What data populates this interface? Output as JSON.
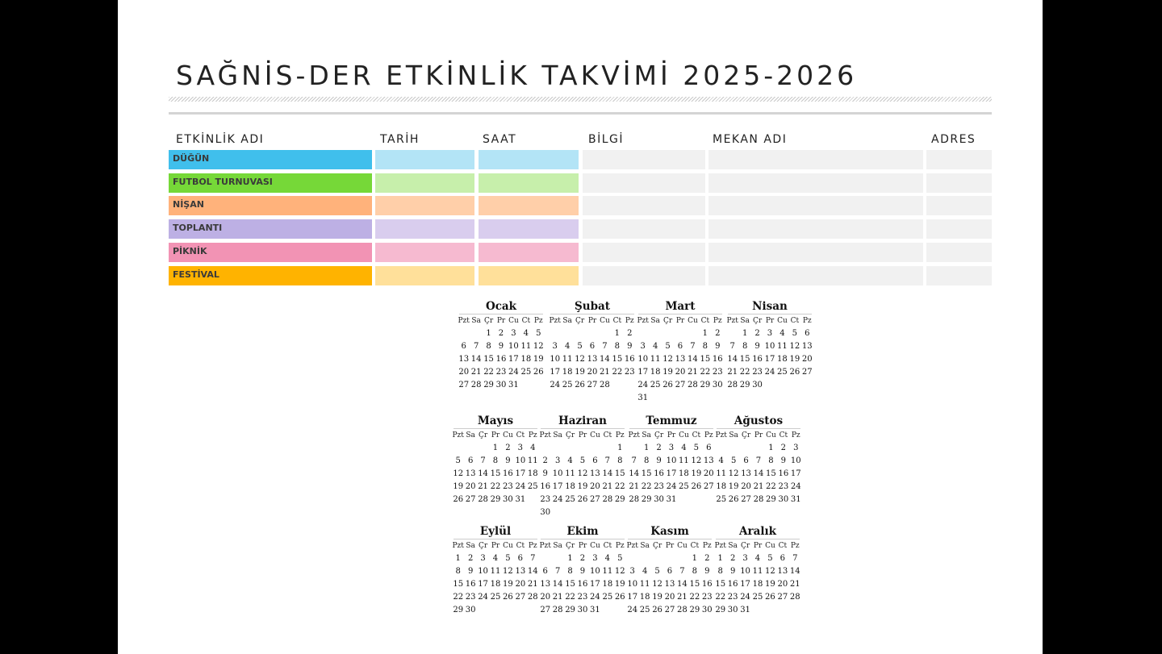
{
  "title": "SAĞNİS-DER ETKİNLİK TAKVİMİ 2025-2026",
  "headers": {
    "name": "ETKİNLİK ADI",
    "date": "TARİH",
    "time": "SAAT",
    "info": "BİLGİ",
    "venue": "MEKAN ADI",
    "address": "ADRES"
  },
  "events": [
    {
      "name": "DÜĞÜN",
      "color": "#40bfec",
      "light": "#b3e4f6"
    },
    {
      "name": "FUTBOL TURNUVASI",
      "color": "#76d838",
      "light": "#c7efab"
    },
    {
      "name": "NİŞAN",
      "color": "#ffb27b",
      "light": "#ffcfa9"
    },
    {
      "name": "TOPLANTI",
      "color": "#bdb0e4",
      "light": "#d9cdee"
    },
    {
      "name": "PİKNİK",
      "color": "#f293b4",
      "light": "#f6bad0"
    },
    {
      "name": "FESTİVAL",
      "color": "#ffb300",
      "light": "#ffe09a"
    }
  ],
  "empty_cell_color": "#f1f1f1",
  "weekdays": [
    "Pzt",
    "Sa",
    "Çr",
    "Pr",
    "Cu",
    "Ct",
    "Pz"
  ],
  "months": [
    {
      "name": "Ocak",
      "offset": 2,
      "days": 31
    },
    {
      "name": "Şubat",
      "offset": 5,
      "days": 28
    },
    {
      "name": "Mart",
      "offset": 5,
      "days": 31
    },
    {
      "name": "Nisan",
      "offset": 1,
      "days": 30
    },
    {
      "name": "Mayıs",
      "offset": 3,
      "days": 31
    },
    {
      "name": "Haziran",
      "offset": 6,
      "days": 30
    },
    {
      "name": "Temmuz",
      "offset": 1,
      "days": 31
    },
    {
      "name": "Ağustos",
      "offset": 4,
      "days": 31
    },
    {
      "name": "Eylül",
      "offset": 0,
      "days": 30
    },
    {
      "name": "Ekim",
      "offset": 2,
      "days": 31
    },
    {
      "name": "Kasım",
      "offset": 5,
      "days": 30
    },
    {
      "name": "Aralık",
      "offset": 0,
      "days": 31
    }
  ]
}
